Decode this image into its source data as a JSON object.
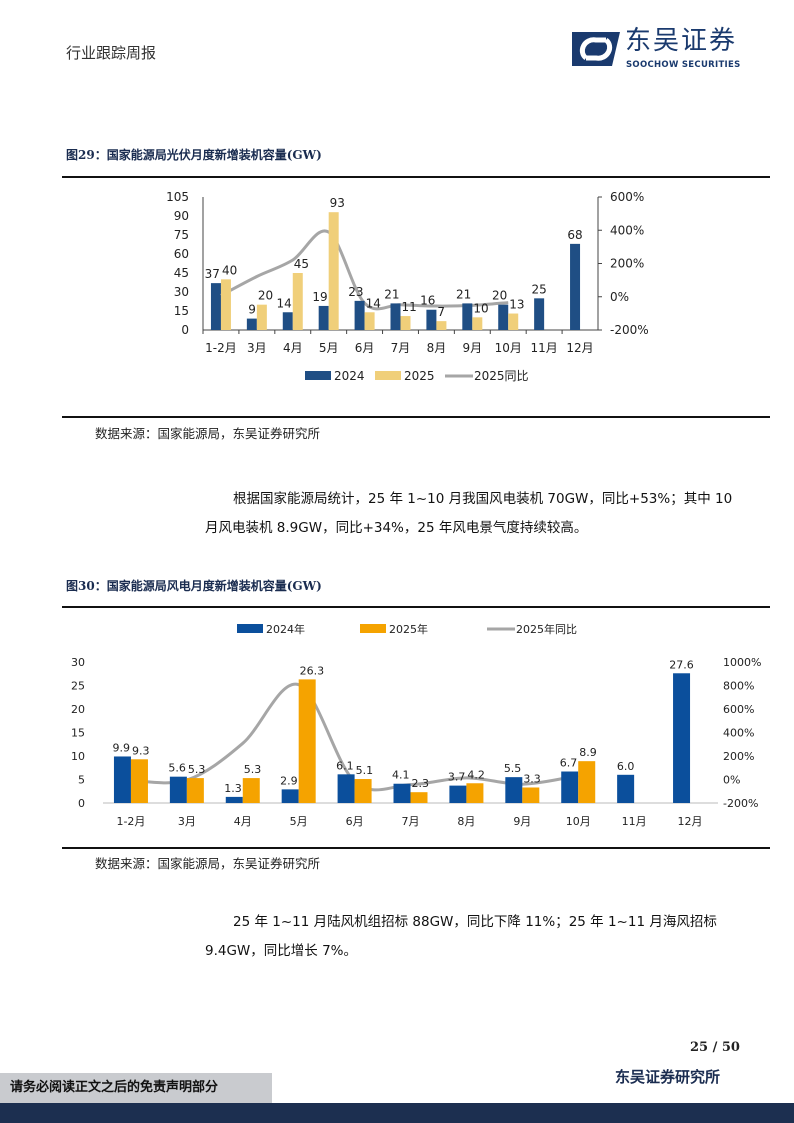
{
  "header": {
    "report_type": "行业跟踪周报",
    "logo_cn": "东吴证券",
    "logo_en": "SOOCHOW SECURITIES",
    "brand_color": "#1a3a6e"
  },
  "figure29": {
    "title": "图29：国家能源局光伏月度新增装机容量(GW)",
    "source": "数据来源：国家能源局，东吴证券研究所"
  },
  "paragraph1": "根据国家能源局统计，25 年 1~10 月我国风电装机 70GW，同比+53%；其中 10 月风电装机 8.9GW，同比+34%，25 年风电景气度持续较高。",
  "figure30": {
    "title": "图30：国家能源局风电月度新增装机容量(GW)",
    "source": "数据来源：国家能源局，东吴证券研究所"
  },
  "paragraph2": "25 年 1~11 月陆风机组招标 88GW，同比下降 11%；25 年 1~11 月海风招标 9.4GW，同比增长 7%。",
  "chart_data": [
    {
      "type": "bar",
      "categories": [
        "1-2月",
        "3月",
        "4月",
        "5月",
        "6月",
        "7月",
        "8月",
        "9月",
        "10月",
        "11月",
        "12月"
      ],
      "series": [
        {
          "name": "2024",
          "kind": "bar",
          "axis": "left",
          "color": "#1f4e84",
          "values": [
            37,
            9,
            14,
            19,
            23,
            21,
            16,
            21,
            20,
            25,
            68
          ],
          "labels": [
            "37",
            "9",
            "14",
            "19",
            "23",
            "21",
            "16",
            "21",
            "20",
            "25",
            "68"
          ]
        },
        {
          "name": "2025",
          "kind": "bar",
          "axis": "left",
          "color": "#f0cf7a",
          "values": [
            40,
            20,
            45,
            93,
            14,
            11,
            7,
            10,
            13,
            null,
            null
          ],
          "labels": [
            "40",
            "20",
            "45",
            "93",
            "14",
            "11",
            "7",
            "10",
            "13",
            "",
            ""
          ]
        },
        {
          "name": "2025同比",
          "kind": "line",
          "axis": "right",
          "color": "#a6a6a6",
          "values": [
            8,
            122,
            221,
            389,
            -39,
            -48,
            -56,
            -52,
            -35,
            null,
            null
          ]
        }
      ],
      "y_left": {
        "min": 0,
        "max": 105,
        "ticks": [
          "0",
          "15",
          "30",
          "45",
          "60",
          "75",
          "90",
          "105"
        ]
      },
      "y_right": {
        "min": -200,
        "max": 600,
        "ticks": [
          "-200%",
          "0%",
          "200%",
          "400%",
          "600%"
        ]
      },
      "legend": "bottom",
      "grid": false
    },
    {
      "type": "bar",
      "categories": [
        "1-2月",
        "3月",
        "4月",
        "5月",
        "6月",
        "7月",
        "8月",
        "9月",
        "10月",
        "11月",
        "12月"
      ],
      "series": [
        {
          "name": "2024年",
          "kind": "bar",
          "axis": "left",
          "color": "#0b4f9c",
          "values": [
            9.9,
            5.6,
            1.3,
            2.9,
            6.1,
            4.1,
            3.7,
            5.5,
            6.7,
            6.0,
            27.6
          ],
          "labels": [
            "9.9",
            "5.6",
            "1.3",
            "2.9",
            "6.1",
            "4.1",
            "3.7",
            "5.5",
            "6.7",
            "6.0",
            "27.6"
          ]
        },
        {
          "name": "2025年",
          "kind": "bar",
          "axis": "left",
          "color": "#f5a300",
          "values": [
            9.3,
            5.3,
            5.3,
            26.3,
            5.1,
            2.3,
            4.2,
            3.3,
            8.9,
            null,
            null
          ],
          "labels": [
            "9.3",
            "5.3",
            "5.3",
            "26.3",
            "5.1",
            "2.3",
            "4.2",
            "3.3",
            "8.9",
            "",
            ""
          ]
        },
        {
          "name": "2025年同比",
          "kind": "line",
          "axis": "right",
          "color": "#a6a6a6",
          "values": [
            -6,
            -5,
            308,
            807,
            -16,
            -44,
            14,
            -40,
            33,
            null,
            null
          ]
        }
      ],
      "y_left": {
        "min": 0,
        "max": 30,
        "ticks": [
          "0",
          "5",
          "10",
          "15",
          "20",
          "25",
          "30"
        ]
      },
      "y_right": {
        "min": -200,
        "max": 1000,
        "ticks": [
          "-200%",
          "0%",
          "200%",
          "400%",
          "600%",
          "800%",
          "1000%"
        ]
      },
      "legend": "top",
      "grid": false
    }
  ],
  "footer": {
    "page": "25 / 50",
    "org": "东吴证券研究所",
    "disclaimer": "请务必阅读正文之后的免责声明部分"
  }
}
